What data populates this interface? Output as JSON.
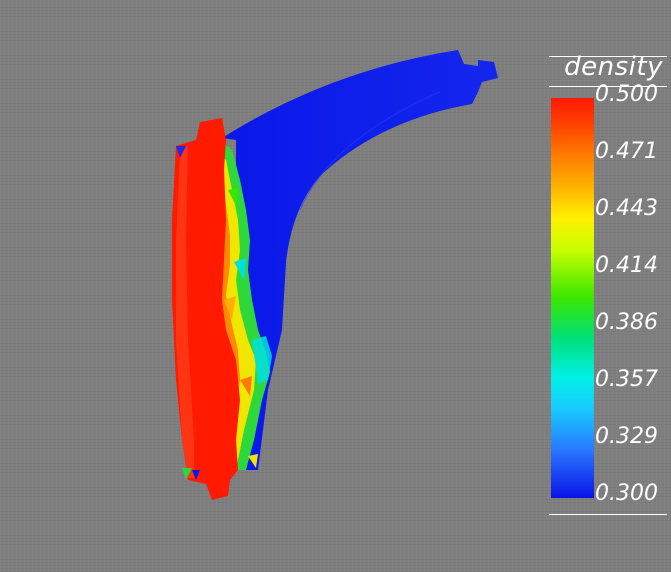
{
  "legend": {
    "title": "density",
    "ticks": [
      "0.500",
      "0.471",
      "0.443",
      "0.414",
      "0.386",
      "0.357",
      "0.329",
      "0.300"
    ],
    "range": [
      0.3,
      0.5
    ]
  },
  "colors": {
    "background": "#7f7f7f",
    "high": "#ff1a00",
    "low": "#0a14e6"
  }
}
